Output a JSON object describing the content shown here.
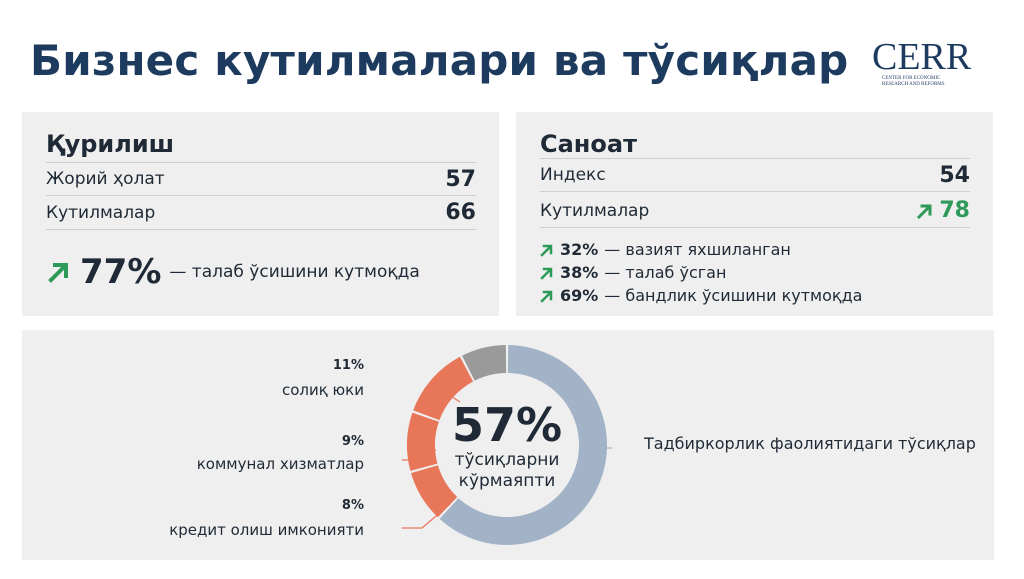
{
  "header": {
    "title": "Бизнес кутилмалари ва тўсиқлар",
    "logo_text": "CERR",
    "logo_subtext": "Center for economic research and reforms"
  },
  "construction": {
    "title": "Қурилиш",
    "rows": [
      {
        "label": "Жорий ҳолат",
        "value": "57"
      },
      {
        "label": "Кутилмалар",
        "value": "66"
      }
    ],
    "highlight": {
      "value": "77%",
      "text": "— талаб ўсишини кутмоқда"
    }
  },
  "industry": {
    "title": "Саноат",
    "rows": [
      {
        "label": "Индекс",
        "value": "54"
      },
      {
        "label": "Кутилмалар",
        "value": "78"
      }
    ],
    "bullets": [
      {
        "value": "32%",
        "text": "— вазият яхшиланган"
      },
      {
        "value": "38%",
        "text": "— талаб ўсган"
      },
      {
        "value": "69%",
        "text": "— бандлик ўсишини кутмоқда"
      }
    ]
  },
  "obstacles": {
    "center_value": "57%",
    "center_line1": "тўсиқларни",
    "center_line2": "кўрмаяпти",
    "right_label": "Тадбиркорлик фаолиятидаги тўсиқлар",
    "callouts": [
      {
        "pct": "11%",
        "label": "солиқ юки"
      },
      {
        "pct": "9%",
        "label": "коммунал хизматлар"
      },
      {
        "pct": "8%",
        "label": "кредит олиш имконияти"
      }
    ],
    "segments": [
      {
        "value": 57,
        "color": "#a3b3c7"
      },
      {
        "value": 8,
        "color": "#e8775a"
      },
      {
        "value": 9,
        "color": "#e8775a"
      },
      {
        "value": 11,
        "color": "#e8775a"
      },
      {
        "value": 7,
        "color": "#9a9a9a"
      }
    ]
  },
  "colors": {
    "title": "#1d3b5e",
    "accent_green": "#2e9a57",
    "orange": "#e8775a",
    "blue_gray": "#a3b3c7",
    "gray": "#9a9a9a"
  },
  "icons": {
    "arrow": "arrow-up-right-icon"
  }
}
